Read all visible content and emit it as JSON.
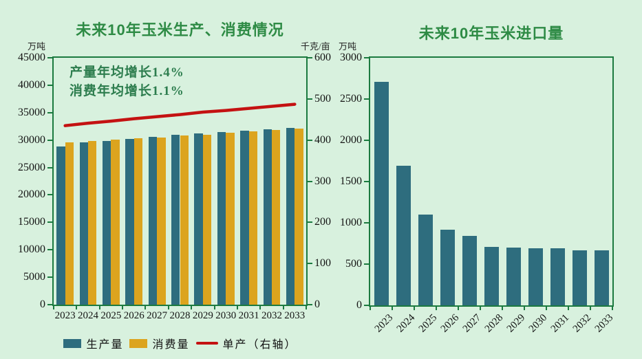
{
  "colors": {
    "bg": "#d8f1de",
    "axis": "#1b7a3f",
    "title": "#2e8b45",
    "anno": "#2d7d4e",
    "tick": "#141414"
  },
  "chart_data": [
    {
      "type": "bar",
      "title": "未来10年玉米生产、消费情况",
      "categories": [
        "2023",
        "2024",
        "2025",
        "2026",
        "2027",
        "2028",
        "2029",
        "2030",
        "2031",
        "2032",
        "2033"
      ],
      "series": [
        {
          "name": "生产量",
          "type": "bar",
          "axis": "left",
          "color": "#2e6d7e",
          "values": [
            28800,
            29600,
            29850,
            30250,
            30600,
            30900,
            31200,
            31450,
            31700,
            32000,
            32250
          ]
        },
        {
          "name": "消费量",
          "type": "bar",
          "axis": "left",
          "color": "#dca41e",
          "values": [
            29550,
            29800,
            30050,
            30300,
            30500,
            30800,
            31000,
            31300,
            31550,
            31850,
            32100
          ]
        },
        {
          "name": "单产（右轴）",
          "type": "line",
          "axis": "right",
          "color": "#c41212",
          "values": [
            435,
            441,
            446,
            452,
            457,
            462,
            468,
            472,
            477,
            482,
            487
          ]
        }
      ],
      "left_axis": {
        "unit": "万吨",
        "min": 0,
        "max": 45000,
        "step": 5000
      },
      "right_axis": {
        "unit": "千克/亩",
        "min": 0,
        "max": 600,
        "step": 100
      },
      "annotations": [
        "产量年均增长1.4%",
        "消费年均增长1.1%"
      ],
      "legend_position": "bottom",
      "grid": false
    },
    {
      "type": "bar",
      "title": "未来10年玉米进口量",
      "categories": [
        "2023",
        "2024",
        "2025",
        "2026",
        "2027",
        "2028",
        "2029",
        "2030",
        "2031",
        "2032",
        "2033"
      ],
      "values": [
        2710,
        1690,
        1100,
        920,
        845,
        705,
        700,
        695,
        690,
        670,
        670
      ],
      "bar_color": "#2e6d7e",
      "y_axis": {
        "unit": "万吨",
        "min": 0,
        "max": 3000,
        "step": 500
      },
      "x_tick_rotation": -45,
      "grid": false
    }
  ]
}
